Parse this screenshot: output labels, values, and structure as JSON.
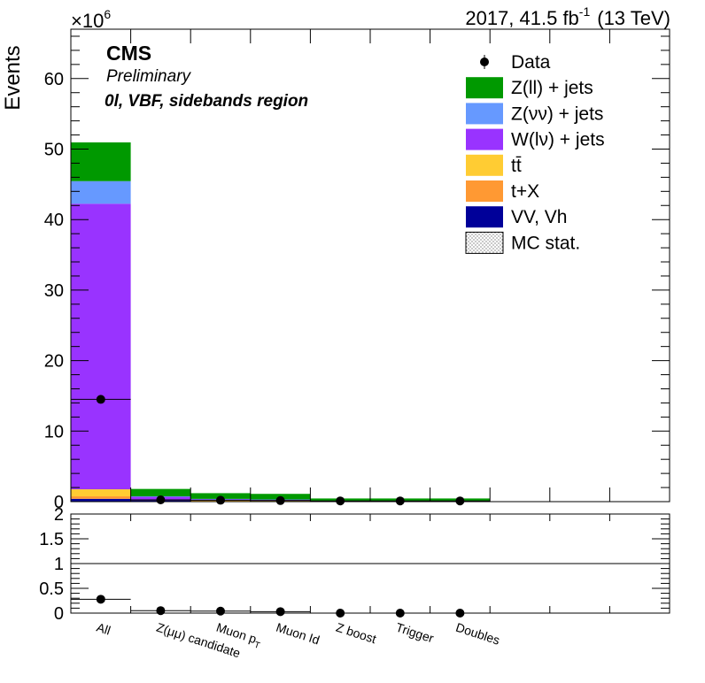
{
  "header": {
    "lumi_main": "2017, 41.5 fb",
    "lumi_sup": "-1",
    "lumi_tail": "(13 TeV)",
    "exponent_base": "×10",
    "exponent_power": "6",
    "experiment": "CMS",
    "status": "Preliminary",
    "region": "0l, VBF, sidebands region"
  },
  "chart_data": [
    {
      "type": "bar",
      "stacked": true,
      "ylabel": "Events",
      "yscale_multiplier": 1000000,
      "ylim": [
        0,
        67
      ],
      "yticks": [
        0,
        10,
        20,
        30,
        40,
        50,
        60
      ],
      "categories": [
        "All",
        "Z(μμ) candidate",
        "Muon p_T",
        "Muon Id",
        "Z boost",
        "Trigger",
        "Doubles"
      ],
      "series": [
        {
          "name": "VV, Vh",
          "color": "#000099",
          "values": [
            0.4,
            0.2,
            0.1,
            0.1,
            0.05,
            0.05,
            0.05
          ]
        },
        {
          "name": "t+X",
          "color": "#ff9933",
          "values": [
            0.35,
            0.05,
            0.03,
            0.02,
            0.01,
            0.01,
            0.01
          ]
        },
        {
          "name": "tt̄",
          "color": "#ffcc33",
          "values": [
            1.0,
            0.05,
            0.03,
            0.02,
            0.01,
            0.01,
            0.01
          ]
        },
        {
          "name": "W(lν) + jets",
          "color": "#9933ff",
          "values": [
            40.5,
            0.4,
            0.2,
            0.15,
            0.05,
            0.05,
            0.05
          ]
        },
        {
          "name": "Z(νν) + jets",
          "color": "#6699ff",
          "values": [
            3.2,
            0.05,
            0.03,
            0.02,
            0.01,
            0.01,
            0.01
          ]
        },
        {
          "name": "Z(ll) + jets",
          "color": "#009900",
          "values": [
            5.5,
            1.05,
            0.81,
            0.79,
            0.32,
            0.32,
            0.32
          ]
        }
      ],
      "data": {
        "name": "Data",
        "values": [
          14.5,
          0.25,
          0.2,
          0.15,
          0.1,
          0.1,
          0.1
        ]
      },
      "legend_placement": "top-right",
      "legend": [
        {
          "label": "Data",
          "kind": "marker"
        },
        {
          "label": "Z(ll) + jets",
          "color": "#009900",
          "kind": "box"
        },
        {
          "label": "Z(νν) + jets",
          "color": "#6699ff",
          "kind": "box"
        },
        {
          "label": "W(lν) + jets",
          "color": "#9933ff",
          "kind": "box"
        },
        {
          "label": "tt̄",
          "color": "#ffcc33",
          "kind": "box"
        },
        {
          "label": "t+X",
          "color": "#ff9933",
          "kind": "box"
        },
        {
          "label": "VV, Vh",
          "color": "#000099",
          "kind": "box"
        },
        {
          "label": "MC stat.",
          "kind": "hatched"
        }
      ]
    },
    {
      "type": "scatter",
      "ylim": [
        0,
        2
      ],
      "yticks": [
        0,
        0.5,
        1,
        1.5,
        2
      ],
      "ytick_labels": [
        "0",
        "0.5",
        "1",
        "1.5",
        "2"
      ],
      "reference_line": 1,
      "categories": [
        "All",
        "Z(μμ) candidate",
        "Muon p_T",
        "Muon Id",
        "Z boost",
        "Trigger",
        "Doubles"
      ],
      "values": [
        0.28,
        0.05,
        0.04,
        0.03,
        0.0,
        0.0,
        0.0
      ],
      "mc_band": [
        0.28,
        0.05,
        0.04,
        0.03,
        0.0,
        0.0,
        0.0
      ]
    }
  ]
}
